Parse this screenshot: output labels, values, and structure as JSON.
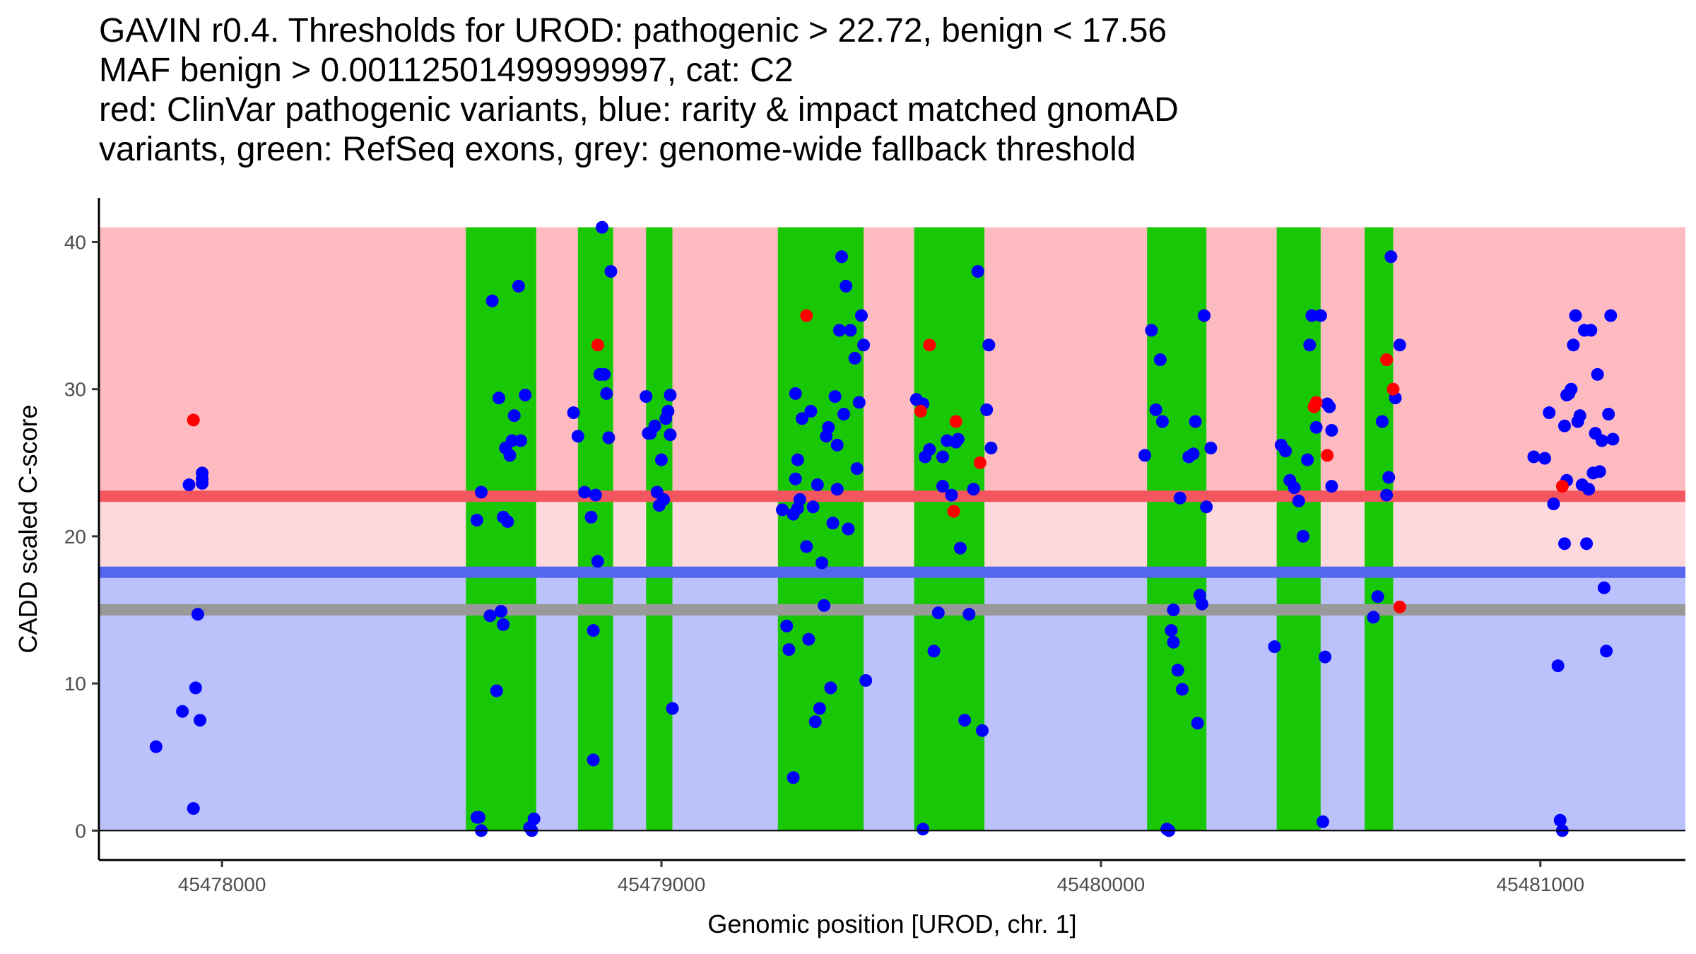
{
  "chart_data": {
    "type": "scatter",
    "title_lines": [
      "GAVIN r0.4. Thresholds for UROD: pathogenic > 22.72, benign < 17.56",
      "MAF benign > 0.00112501499999997, cat: C2",
      "red: ClinVar pathogenic variants, blue: rarity & impact matched gnomAD",
      "variants, green: RefSeq exons, grey: genome-wide fallback threshold"
    ],
    "xlabel": "Genomic position [UROD, chr. 1]",
    "ylabel": "CADD scaled C-score",
    "xlim": [
      45477720,
      45481330
    ],
    "ylim": [
      -2,
      43
    ],
    "x_ticks": [
      {
        "value": 45478000,
        "label": "45478000"
      },
      {
        "value": 45479000,
        "label": "45479000"
      },
      {
        "value": 45480000,
        "label": "45480000"
      },
      {
        "value": 45481000,
        "label": "45481000"
      }
    ],
    "y_ticks": [
      {
        "value": 0,
        "label": "0"
      },
      {
        "value": 10,
        "label": "10"
      },
      {
        "value": 20,
        "label": "20"
      },
      {
        "value": 30,
        "label": "30"
      },
      {
        "value": 40,
        "label": "40"
      }
    ],
    "colors": {
      "pathogenic_region": "#fdbbc1",
      "intermediate_region": "#fdd8dc",
      "benign_region": "#bbc2fb",
      "pathogenic_line": "#f4565f",
      "benign_line": "#5566ee",
      "fallback_line": "#999999",
      "exon": "#19c805",
      "gnomad_point": "#0000ff",
      "clinvar_point": "#ff0000"
    },
    "regions": {
      "pathogenic": {
        "from": 22.72,
        "to": 41
      },
      "intermediate": {
        "from": 17.56,
        "to": 22.72
      },
      "benign": {
        "from": 0,
        "to": 17.56
      }
    },
    "thresholds": {
      "pathogenic": 22.72,
      "benign": 17.56,
      "fallback": 15.0
    },
    "exons": [
      {
        "start": 45478555,
        "end": 45478715
      },
      {
        "start": 45478810,
        "end": 45478890
      },
      {
        "start": 45478965,
        "end": 45479025
      },
      {
        "start": 45479265,
        "end": 45479460
      },
      {
        "start": 45479575,
        "end": 45479735
      },
      {
        "start": 45480105,
        "end": 45480240
      },
      {
        "start": 45480400,
        "end": 45480500
      },
      {
        "start": 45480600,
        "end": 45480665
      }
    ],
    "series": [
      {
        "name": "ClinVar pathogenic variants",
        "color": "#ff0000",
        "x": [
          45477935,
          45478855,
          45479330,
          45479590,
          45479610,
          45479665,
          45479670,
          45479725,
          45480485,
          45480490,
          45480515,
          45480650,
          45480665,
          45480680,
          45481050
        ],
        "y": [
          27.9,
          33.0,
          35.0,
          28.5,
          33.0,
          21.7,
          27.8,
          25.0,
          28.8,
          29.1,
          25.5,
          32.0,
          30.0,
          15.2,
          23.4
        ]
      },
      {
        "name": "gnomAD variants",
        "color": "#0000ff",
        "x": [
          45477850,
          45477910,
          45477925,
          45477935,
          45477940,
          45477945,
          45477950,
          45477955,
          45477955,
          45477955,
          45478580,
          45478585,
          45478590,
          45478610,
          45478615,
          45478625,
          45478630,
          45478635,
          45478640,
          45478640,
          45478645,
          45478650,
          45478655,
          45478660,
          45478665,
          45478675,
          45478680,
          45478690,
          45478700,
          45478705,
          45478710,
          45478580,
          45478590,
          45478800,
          45478810,
          45478825,
          45478840,
          45478845,
          45478850,
          45478855,
          45478860,
          45478865,
          45478870,
          45478875,
          45478880,
          45478885,
          45478845,
          45478860,
          45478965,
          45478970,
          45478975,
          45478985,
          45478990,
          45478995,
          45479000,
          45479005,
          45479010,
          45479015,
          45479020,
          45479025,
          45479020,
          45479275,
          45479285,
          45479290,
          45479300,
          45479305,
          45479310,
          45479315,
          45479320,
          45479330,
          45479335,
          45479340,
          45479345,
          45479350,
          45479355,
          45479360,
          45479365,
          45479370,
          45479375,
          45479380,
          45479385,
          45479390,
          45479395,
          45479400,
          45479405,
          45479410,
          45479415,
          45479420,
          45479425,
          45479430,
          45479440,
          45479445,
          45479450,
          45479455,
          45479460,
          45479465,
          45479300,
          45479305,
          45479310,
          45479400,
          45479580,
          45479595,
          45479600,
          45479610,
          45479620,
          45479630,
          45479640,
          45479650,
          45479660,
          45479670,
          45479675,
          45479680,
          45479690,
          45479700,
          45479710,
          45479720,
          45479730,
          45479740,
          45479745,
          45479750,
          45479640,
          45479595,
          45480100,
          45480115,
          45480125,
          45480135,
          45480140,
          45480150,
          45480155,
          45480160,
          45480165,
          45480175,
          45480185,
          45480200,
          45480210,
          45480215,
          45480220,
          45480225,
          45480230,
          45480235,
          45480240,
          45480250,
          45480165,
          45480180,
          45480395,
          45480410,
          45480420,
          45480430,
          45480440,
          45480450,
          45480460,
          45480470,
          45480475,
          45480480,
          45480490,
          45480500,
          45480505,
          45480510,
          45480515,
          45480520,
          45480525,
          45480525,
          45480620,
          45480630,
          45480640,
          45480650,
          45480655,
          45480660,
          45480670,
          45480680,
          45480985,
          45481010,
          45481020,
          45481030,
          45481040,
          45481045,
          45481050,
          45481055,
          45481060,
          45481065,
          45481070,
          45481075,
          45481080,
          45481085,
          45481090,
          45481095,
          45481100,
          45481105,
          45481110,
          45481115,
          45481120,
          45481125,
          45481130,
          45481135,
          45481140,
          45481145,
          45481150,
          45481155,
          45481160,
          45481165,
          45481055,
          45481060
        ],
        "y": [
          5.7,
          8.1,
          23.5,
          1.5,
          9.7,
          14.7,
          7.5,
          23.6,
          24.3,
          23.9,
          21.1,
          0.9,
          23.0,
          14.6,
          36.0,
          9.5,
          29.4,
          14.9,
          14.0,
          21.3,
          26.0,
          21.0,
          25.5,
          26.5,
          28.2,
          37.0,
          26.5,
          29.6,
          0.2,
          0.0,
          0.8,
          0.9,
          0.0,
          28.4,
          26.8,
          23.0,
          21.3,
          13.6,
          22.8,
          18.3,
          31.0,
          41.0,
          31.0,
          29.7,
          26.7,
          38.0,
          4.8,
          31.0,
          29.5,
          27.0,
          27.0,
          27.5,
          23.0,
          22.1,
          25.2,
          22.5,
          28.0,
          28.5,
          29.6,
          8.3,
          26.9,
          21.8,
          13.9,
          12.3,
          3.6,
          29.7,
          25.2,
          22.5,
          28.0,
          19.3,
          13.0,
          28.5,
          22.0,
          7.4,
          23.5,
          8.3,
          18.2,
          15.3,
          26.8,
          27.4,
          9.7,
          20.9,
          29.5,
          23.2,
          34.0,
          39.0,
          28.3,
          37.0,
          20.5,
          34.0,
          32.1,
          24.6,
          29.1,
          35.0,
          33.0,
          10.2,
          21.5,
          23.9,
          21.9,
          26.2,
          29.3,
          0.1,
          25.4,
          25.9,
          12.2,
          14.8,
          23.4,
          26.5,
          22.8,
          26.4,
          26.6,
          19.2,
          7.5,
          14.7,
          23.2,
          38.0,
          6.8,
          28.6,
          33.0,
          26.0,
          25.4,
          29.0,
          25.5,
          34.0,
          28.6,
          32.0,
          27.8,
          0.1,
          0.0,
          13.6,
          12.8,
          10.9,
          9.6,
          25.4,
          25.6,
          27.8,
          7.3,
          16.0,
          15.4,
          35.0,
          22.0,
          26.0,
          15.0,
          22.6,
          12.5,
          26.2,
          25.8,
          23.8,
          23.3,
          22.4,
          20.0,
          25.2,
          33.0,
          35.0,
          27.4,
          35.0,
          0.6,
          11.8,
          29.0,
          28.8,
          27.2,
          23.4,
          14.5,
          15.9,
          27.8,
          22.8,
          24.0,
          39.0,
          29.4,
          33.0,
          25.4,
          25.3,
          28.4,
          22.2,
          11.2,
          0.7,
          0.0,
          19.5,
          23.8,
          29.7,
          30.0,
          33.0,
          35.0,
          27.8,
          28.2,
          23.5,
          34.0,
          19.5,
          23.2,
          34.0,
          24.3,
          27.0,
          31.0,
          24.4,
          26.5,
          16.5,
          12.2,
          28.3,
          35.0,
          26.6,
          27.5,
          29.6
        ]
      }
    ]
  }
}
